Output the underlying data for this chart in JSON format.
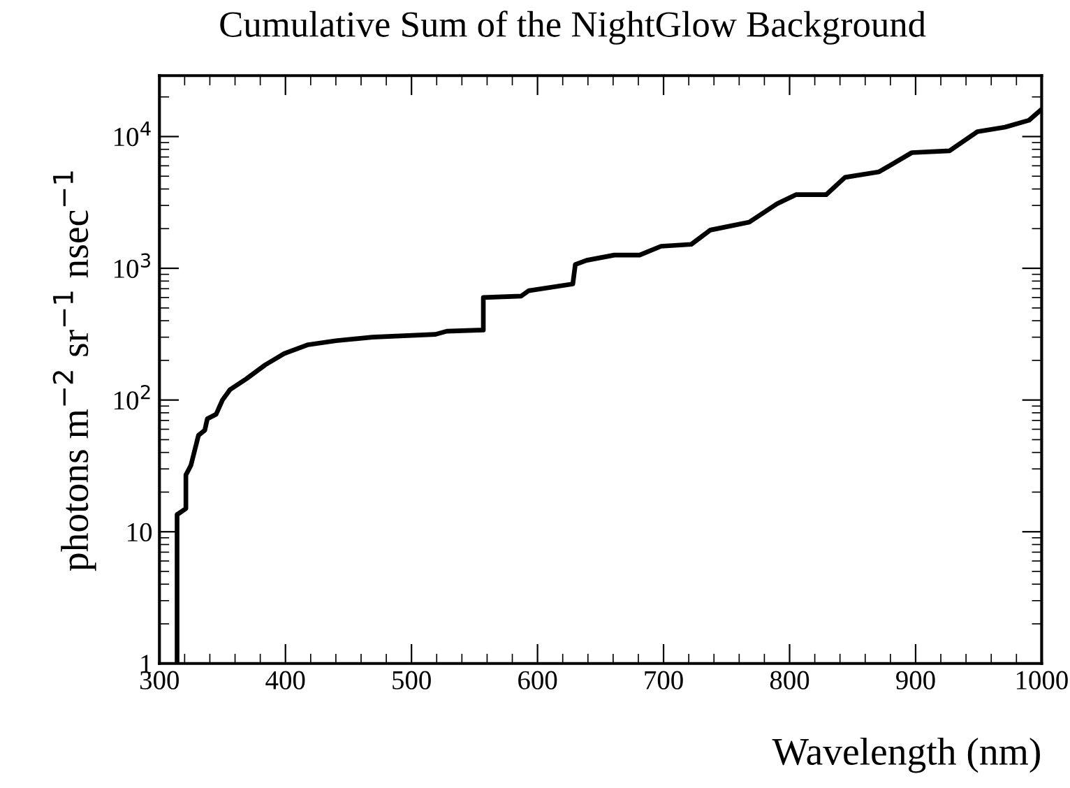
{
  "chart_data": {
    "type": "line",
    "title": "Cumulative Sum of the NightGlow Background",
    "xlabel": "Wavelength (nm)",
    "ylabel": "photons m$^{−2}$ sr$^{−1}$ nsec$^{−1}$",
    "log": "y",
    "grid": false,
    "marker": "none",
    "line_style": "solid",
    "xlim": [
      300,
      1000
    ],
    "xticks": [
      300,
      400,
      500,
      600,
      700,
      800,
      900,
      {
        "value": 1000,
        "label": "1000"
      }
    ],
    "ylim": [
      1,
      29000
    ],
    "yticks": [
      1,
      10,
      {
        "value": 100,
        "label": "10$^{2}$"
      },
      {
        "value": 1000,
        "label": "10$^{3}$"
      },
      {
        "value": 10000,
        "label": "10$^{4}$"
      }
    ],
    "series": [
      {
        "color": "#000000",
        "x": [
          314,
          314,
          321,
          321,
          325,
          331,
          336,
          338,
          345,
          350,
          356,
          369,
          384,
          399,
          418,
          440,
          469,
          519,
          528,
          557,
          557,
          587,
          593,
          628,
          630,
          639,
          661,
          681,
          698,
          722,
          737,
          768,
          790,
          805,
          829,
          844,
          871,
          897,
          927,
          949,
          971,
          990,
          999
        ],
        "values": [
          1,
          13.5,
          15,
          27,
          32,
          54,
          59,
          72,
          78,
          100,
          120,
          145,
          185,
          225,
          263,
          282,
          300,
          315,
          333,
          340,
          600,
          615,
          676,
          760,
          1070,
          1150,
          1260,
          1260,
          1470,
          1520,
          1950,
          2240,
          3090,
          3620,
          3620,
          4900,
          5400,
          7550,
          7800,
          10900,
          11800,
          13300,
          15800
        ]
      }
    ]
  }
}
